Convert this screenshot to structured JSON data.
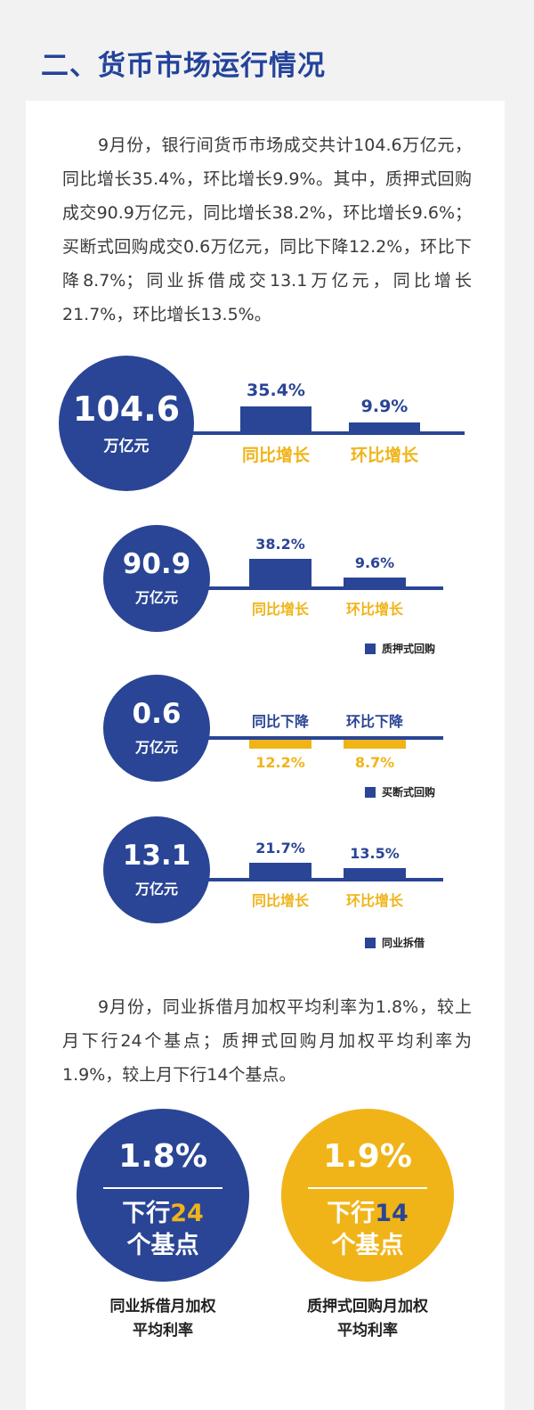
{
  "section_title": "二、货币市场运行情况",
  "paragraph1": "9月份，银行间货币市场成交共计104.6万亿元，同比增长35.4%，环比增长9.9%。其中，质押式回购成交90.9万亿元，同比增长38.2%，环比增长9.6%；买断式回购成交0.6万亿元，同比下降12.2%，环比下降8.7%；同业拆借成交13.1万亿元，同比增长21.7%，环比增长13.5%。",
  "paragraph2": "9月份，同业拆借月加权平均利率为1.8%，较上月下行24个基点；质押式回购月加权平均利率为1.9%，较上月下行14个基点。",
  "colors": {
    "blue": "#2a4595",
    "gold": "#f0b419",
    "title_blue": "#24449a"
  },
  "chart_data": [
    {
      "type": "bar",
      "total": "104.6",
      "unit": "万亿元",
      "legend": "",
      "categories": [
        "同比增长",
        "环比增长"
      ],
      "values": [
        35.4,
        9.9
      ],
      "value_labels": [
        "35.4%",
        "9.9%"
      ],
      "direction": "up"
    },
    {
      "type": "bar",
      "total": "90.9",
      "unit": "万亿元",
      "legend": "质押式回购",
      "categories": [
        "同比增长",
        "环比增长"
      ],
      "values": [
        38.2,
        9.6
      ],
      "value_labels": [
        "38.2%",
        "9.6%"
      ],
      "direction": "up"
    },
    {
      "type": "bar",
      "total": "0.6",
      "unit": "万亿元",
      "legend": "买断式回购",
      "categories": [
        "同比下降",
        "环比下降"
      ],
      "values": [
        -12.2,
        -8.7
      ],
      "value_labels": [
        "12.2%",
        "8.7%"
      ],
      "direction": "down"
    },
    {
      "type": "bar",
      "total": "13.1",
      "unit": "万亿元",
      "legend": "同业拆借",
      "categories": [
        "同比增长",
        "环比增长"
      ],
      "values": [
        21.7,
        13.5
      ],
      "value_labels": [
        "21.7%",
        "13.5%"
      ],
      "direction": "up"
    }
  ],
  "rates": [
    {
      "value": "1.8%",
      "line1_prefix": "下行",
      "bp": "24",
      "line2": "个基点",
      "caption_line1": "同业拆借月加权",
      "caption_line2": "平均利率"
    },
    {
      "value": "1.9%",
      "line1_prefix": "下行",
      "bp": "14",
      "line2": "个基点",
      "caption_line1": "质押式回购月加权",
      "caption_line2": "平均利率"
    }
  ]
}
